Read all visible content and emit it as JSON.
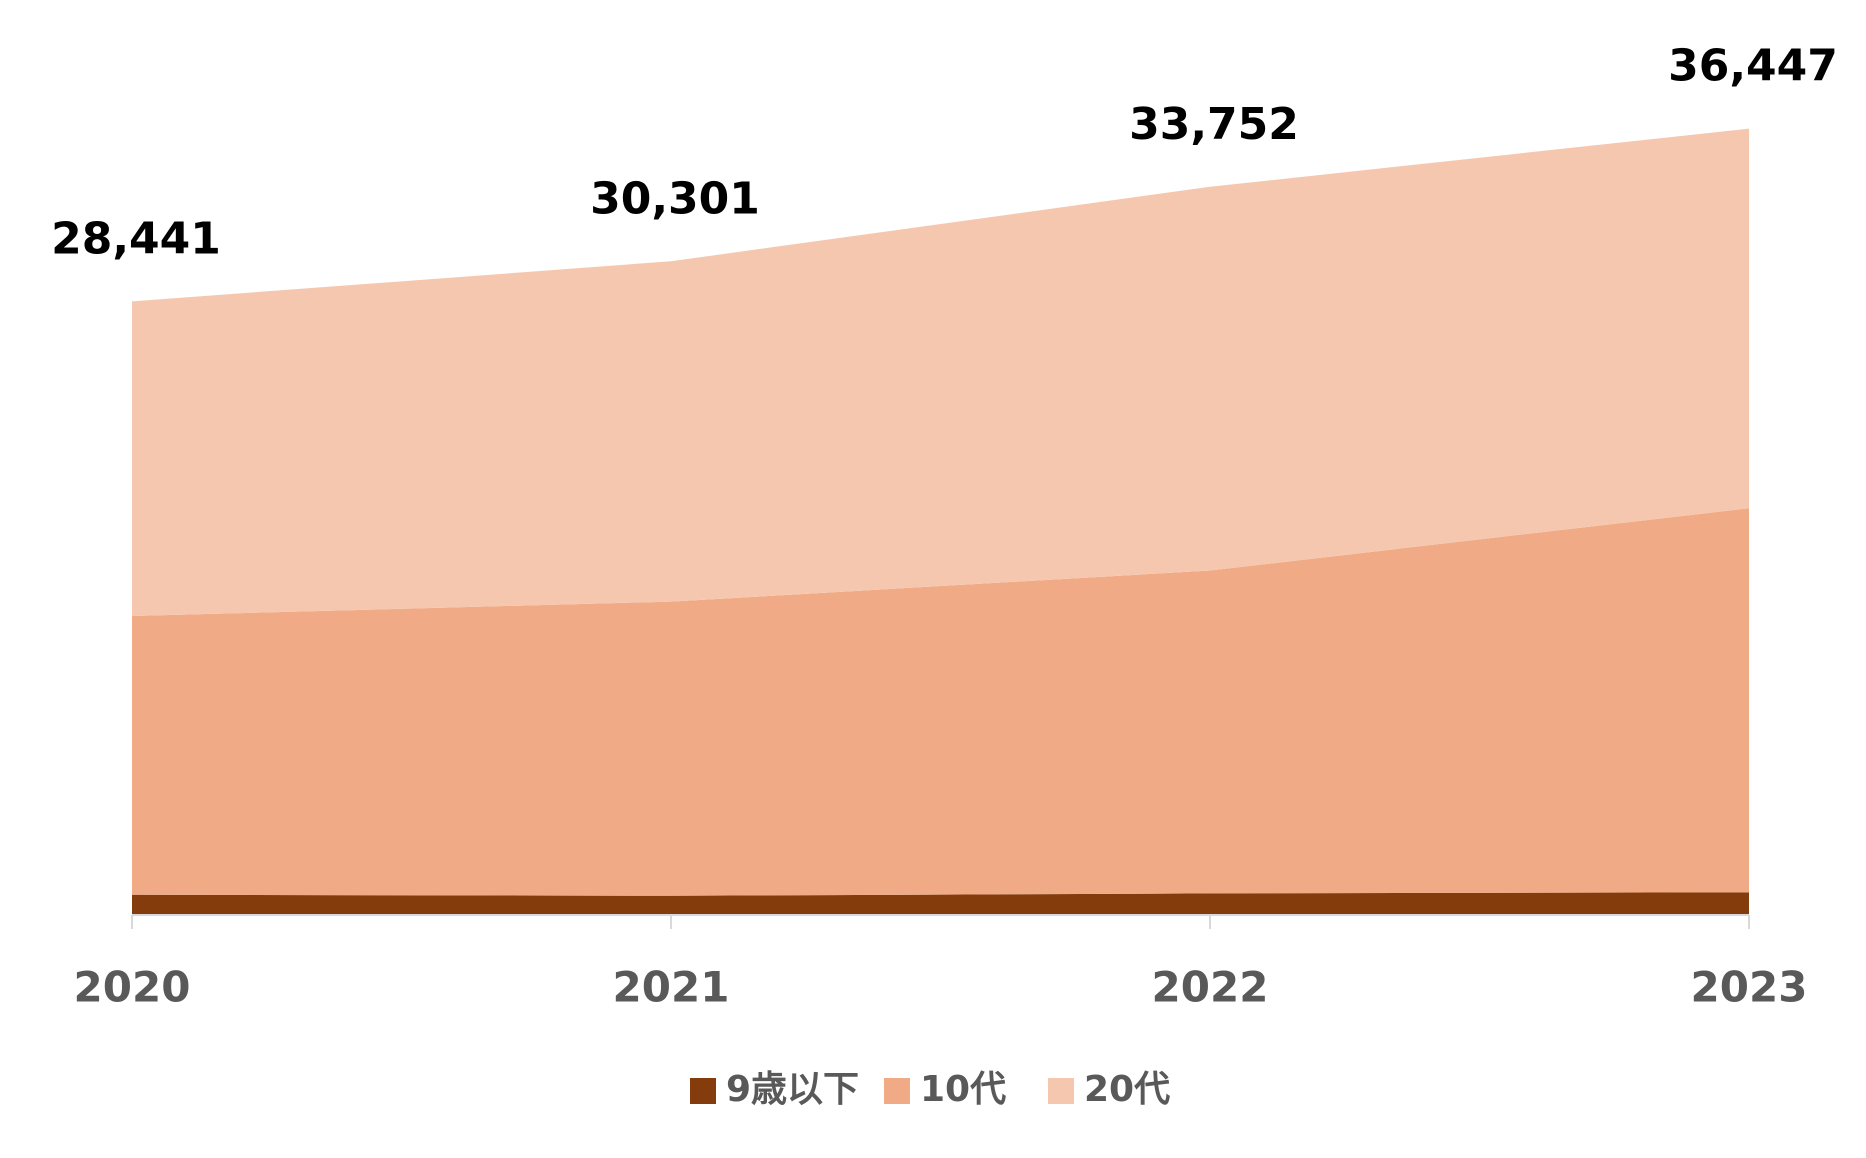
{
  "chart_data": {
    "type": "stacked_area",
    "categories": [
      "2020",
      "2021",
      "2022",
      "2023"
    ],
    "series": [
      {
        "name": "9歳以下",
        "color": "#843C0C",
        "values": [
          940,
          890,
          1000,
          1050
        ]
      },
      {
        "name": "10代",
        "color": "#F1AA86",
        "values": [
          12920,
          13635,
          14967,
          17800
        ]
      },
      {
        "name": "20代",
        "color": "#F6C7AF",
        "values": [
          14581,
          15776,
          17785,
          17597
        ]
      }
    ],
    "totals": [
      28441,
      30301,
      33752,
      36447
    ],
    "total_labels": [
      "28,441",
      "30,301",
      "33,752",
      "36,447"
    ],
    "ylim": [
      0,
      40000
    ],
    "legend": "bottom"
  }
}
